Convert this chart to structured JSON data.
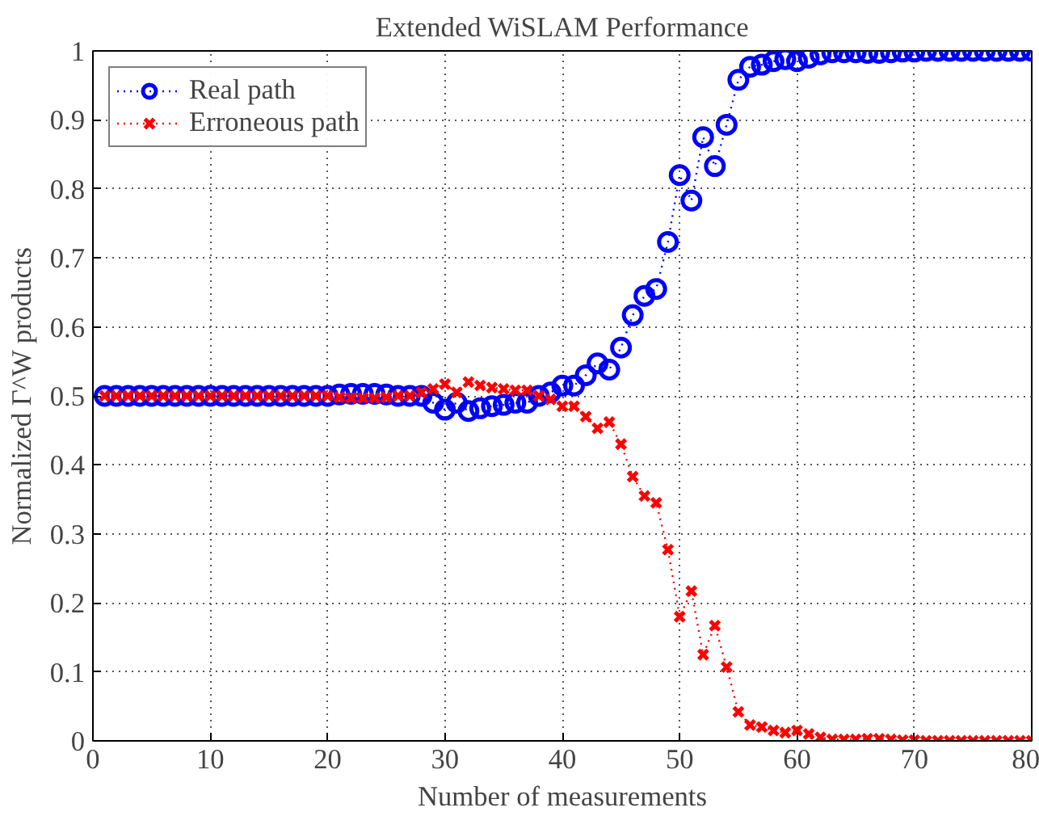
{
  "chart_data": {
    "type": "line",
    "title": "Extended WiSLAM Performance",
    "xlabel": "Number of measurements",
    "ylabel": "Normalized Γ^W products",
    "x": [
      1,
      2,
      3,
      4,
      5,
      6,
      7,
      8,
      9,
      10,
      11,
      12,
      13,
      14,
      15,
      16,
      17,
      18,
      19,
      20,
      21,
      22,
      23,
      24,
      25,
      26,
      27,
      28,
      29,
      30,
      31,
      32,
      33,
      34,
      35,
      36,
      37,
      38,
      39,
      40,
      41,
      42,
      43,
      44,
      45,
      46,
      47,
      48,
      49,
      50,
      51,
      52,
      53,
      54,
      55,
      56,
      57,
      58,
      59,
      60,
      61,
      62,
      63,
      64,
      65,
      66,
      67,
      68,
      69,
      70,
      71,
      72,
      73,
      74,
      75,
      76,
      77,
      78,
      79,
      80
    ],
    "series": [
      {
        "name": "Real path",
        "color": "#0000ff",
        "marker": "circle",
        "values": [
          0.5,
          0.5,
          0.5,
          0.5,
          0.5,
          0.5,
          0.5,
          0.5,
          0.5,
          0.5,
          0.5,
          0.5,
          0.5,
          0.5,
          0.5,
          0.5,
          0.5,
          0.5,
          0.5,
          0.5,
          0.502,
          0.503,
          0.503,
          0.503,
          0.502,
          0.5,
          0.5,
          0.5,
          0.49,
          0.48,
          0.49,
          0.478,
          0.482,
          0.485,
          0.487,
          0.49,
          0.49,
          0.5,
          0.505,
          0.515,
          0.515,
          0.53,
          0.547,
          0.538,
          0.57,
          0.617,
          0.645,
          0.655,
          0.723,
          0.82,
          0.783,
          0.875,
          0.833,
          0.893,
          0.958,
          0.977,
          0.98,
          0.985,
          0.988,
          0.985,
          0.99,
          0.995,
          0.998,
          0.998,
          0.998,
          0.997,
          0.997,
          0.998,
          0.999,
          0.999,
          1,
          1,
          1,
          1,
          1,
          1,
          1,
          1,
          1,
          1
        ]
      },
      {
        "name": "Erroneous path",
        "color": "#ff0000",
        "marker": "cross",
        "values": [
          0.5,
          0.5,
          0.5,
          0.5,
          0.5,
          0.5,
          0.5,
          0.5,
          0.5,
          0.5,
          0.5,
          0.5,
          0.5,
          0.5,
          0.5,
          0.5,
          0.5,
          0.5,
          0.5,
          0.5,
          0.498,
          0.497,
          0.497,
          0.497,
          0.498,
          0.5,
          0.5,
          0.505,
          0.51,
          0.517,
          0.505,
          0.52,
          0.515,
          0.512,
          0.51,
          0.508,
          0.508,
          0.5,
          0.495,
          0.485,
          0.485,
          0.47,
          0.453,
          0.462,
          0.43,
          0.383,
          0.355,
          0.345,
          0.277,
          0.18,
          0.217,
          0.125,
          0.167,
          0.107,
          0.042,
          0.023,
          0.02,
          0.015,
          0.012,
          0.015,
          0.01,
          0.005,
          0.002,
          0.002,
          0.002,
          0.003,
          0.003,
          0.002,
          0.001,
          0.001,
          0,
          0,
          0,
          0,
          0,
          0,
          0,
          0,
          0,
          0
        ]
      }
    ],
    "line_style": "dotted",
    "xlim": [
      0,
      80
    ],
    "ylim": [
      0,
      1
    ],
    "xticks": [
      0,
      10,
      20,
      30,
      40,
      50,
      60,
      70,
      80
    ],
    "yticks": [
      0,
      0.1,
      0.2,
      0.3,
      0.4,
      0.5,
      0.6,
      0.7,
      0.8,
      0.9,
      1
    ],
    "grid": true,
    "legend": "top left"
  }
}
